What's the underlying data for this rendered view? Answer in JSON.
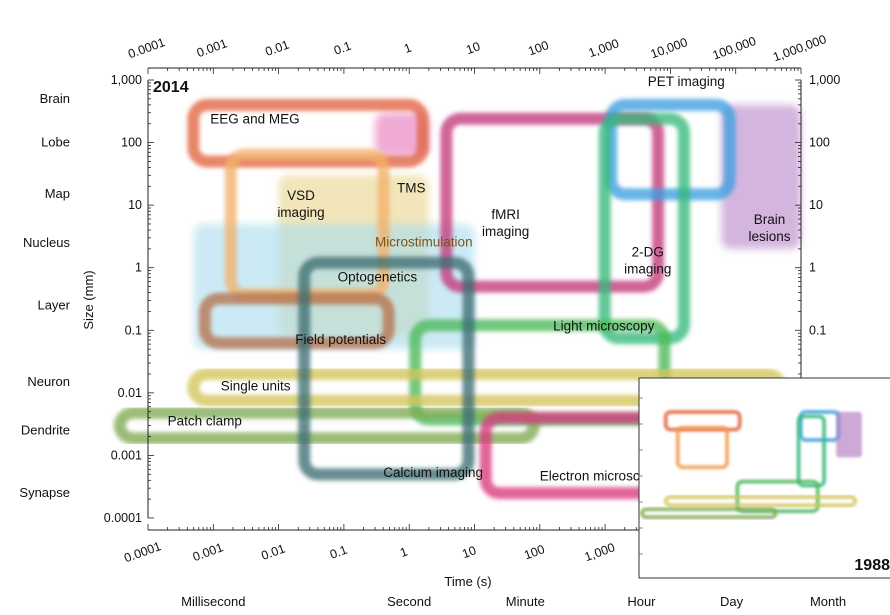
{
  "chart_data": {
    "type": "range-map",
    "year_label": "2014",
    "inset_year_label": "1988",
    "xlabel": "Time (s)",
    "ylabel": "Size (mm)",
    "x_scale": "log",
    "y_scale": "log",
    "xlim": [
      0.0001,
      1000000
    ],
    "ylim": [
      0.0001,
      1000
    ],
    "x_tick_labels": [
      "0.0001",
      "0.001",
      "0.01",
      "0.1",
      "1",
      "10",
      "100",
      "1,000",
      "10,000",
      "100,000",
      "1,000,000"
    ],
    "y_tick_labels": [
      "0.0001",
      "0.001",
      "0.01",
      "0.1",
      "1",
      "10",
      "100",
      "1,000"
    ],
    "y_tick_labels_right": [
      "0.1",
      "1",
      "10",
      "100",
      "1,000"
    ],
    "time_scale_labels": [
      {
        "label": "Millisecond",
        "value": 0.001
      },
      {
        "label": "Second",
        "value": 1
      },
      {
        "label": "Minute",
        "value": 60
      },
      {
        "label": "Hour",
        "value": 3600
      },
      {
        "label": "Day",
        "value": 86400
      },
      {
        "label": "Month",
        "value": 2592000
      }
    ],
    "size_scale_labels": [
      {
        "label": "Brain",
        "value": 500
      },
      {
        "label": "Lobe",
        "value": 100
      },
      {
        "label": "Map",
        "value": 15
      },
      {
        "label": "Nucleus",
        "value": 2.5
      },
      {
        "label": "Layer",
        "value": 0.25
      },
      {
        "label": "Neuron",
        "value": 0.015
      },
      {
        "label": "Dendrite",
        "value": 0.0025
      },
      {
        "label": "Synapse",
        "value": 0.00025
      }
    ],
    "methods": [
      {
        "name": "EEG and MEG",
        "x": [
          0.0004,
          2
        ],
        "y": [
          40,
          500
        ],
        "color": "#e0633f",
        "style": "outline",
        "label_at": [
          0.0009,
          200
        ]
      },
      {
        "name": "VSD imaging",
        "x": [
          0.0015,
          0.5
        ],
        "y": [
          0.3,
          80
        ],
        "color": "#f2b16a",
        "style": "outline",
        "label_at": [
          0.022,
          12
        ]
      },
      {
        "name": "TMS",
        "x": [
          0.3,
          2
        ],
        "y": [
          60,
          300
        ],
        "color": "#e673b8",
        "style": "fill",
        "label_at": [
          0.65,
          16
        ]
      },
      {
        "name": "fMRI imaging",
        "x": [
          3,
          8000
        ],
        "y": [
          0.4,
          300
        ],
        "color": "#c3387a",
        "style": "outline",
        "label_at": [
          30,
          6
        ]
      },
      {
        "name": "PET imaging",
        "x": [
          1000,
          100000
        ],
        "y": [
          12,
          500
        ],
        "color": "#3c9fe0",
        "style": "outline",
        "label_at": [
          4500,
          800
        ]
      },
      {
        "name": "2-DG imaging",
        "x": [
          800,
          20000
        ],
        "y": [
          0.06,
          300
        ],
        "color": "#35b87a",
        "style": "outline",
        "label_at": [
          4500,
          1.5
        ]
      },
      {
        "name": "Brain lesions",
        "x": [
          60000,
          1000000
        ],
        "y": [
          2,
          400
        ],
        "color": "#b884c6",
        "style": "fill",
        "label_at": [
          330000,
          5
        ]
      },
      {
        "name": "Microstimulation",
        "x": [
          0.01,
          2
        ],
        "y": [
          0.08,
          30
        ],
        "color": "#e8d48a",
        "style": "fill",
        "label_at": [
          0.3,
          2.2
        ]
      },
      {
        "name": "Optogenetics",
        "x": [
          0.0005,
          10
        ],
        "y": [
          0.05,
          5
        ],
        "color": "#a8dcef",
        "style": "fill",
        "label_at": [
          0.08,
          0.6
        ]
      },
      {
        "name": "Light microscopy",
        "x": [
          1,
          10000
        ],
        "y": [
          0.003,
          0.15
        ],
        "color": "#4cb85a",
        "style": "outline",
        "label_at": [
          160,
          0.1
        ]
      },
      {
        "name": "Field potentials",
        "x": [
          0.0006,
          0.6
        ],
        "y": [
          0.05,
          0.4
        ],
        "color": "#b5734e",
        "style": "outline",
        "label_at": [
          0.018,
          0.06
        ]
      },
      {
        "name": "Single units",
        "x": [
          0.0004,
          600000
        ],
        "y": [
          0.006,
          0.025
        ],
        "color": "#d4c45a",
        "style": "outline",
        "label_at": [
          0.0013,
          0.011
        ]
      },
      {
        "name": "Patch clamp",
        "x": [
          3e-05,
          100
        ],
        "y": [
          0.0015,
          0.006
        ],
        "color": "#7faa52",
        "style": "outline",
        "label_at": [
          0.0002,
          0.003
        ]
      },
      {
        "name": "Calcium imaging",
        "x": [
          0.02,
          10
        ],
        "y": [
          0.0004,
          1.5
        ],
        "color": "#3e6e72",
        "style": "outline",
        "label_at": [
          0.4,
          0.00045
        ]
      },
      {
        "name": "Electron microscopy",
        "x": [
          12,
          12000
        ],
        "y": [
          0.0002,
          0.005
        ],
        "color": "#d83a7e",
        "style": "outline",
        "label_at": [
          100,
          0.0004
        ]
      }
    ],
    "inset_1988": [
      {
        "name": "EEG and MEG",
        "x": [
          0.0004,
          2
        ],
        "y": [
          40,
          500
        ],
        "color": "#e0633f"
      },
      {
        "name": "VSD imaging",
        "x": [
          0.0015,
          0.5
        ],
        "y": [
          0.5,
          80
        ],
        "color": "#f2984a"
      },
      {
        "name": "PET imaging",
        "x": [
          1000,
          100000
        ],
        "y": [
          12,
          500
        ],
        "color": "#3c9fe0"
      },
      {
        "name": "2-DG imaging",
        "x": [
          800,
          20000
        ],
        "y": [
          0.06,
          300
        ],
        "color": "#35b87a"
      },
      {
        "name": "Brain lesions",
        "x": [
          60000,
          1000000
        ],
        "y": [
          2,
          400
        ],
        "color": "#b884c6"
      },
      {
        "name": "Light microscopy",
        "x": [
          1,
          10000
        ],
        "y": [
          0.003,
          0.15
        ],
        "color": "#4cb85a"
      },
      {
        "name": "Single units",
        "x": [
          0.0004,
          600000
        ],
        "y": [
          0.006,
          0.025
        ],
        "color": "#d4c45a"
      },
      {
        "name": "Patch clamp",
        "x": [
          3e-05,
          100
        ],
        "y": [
          0.0015,
          0.006
        ],
        "color": "#7faa52"
      }
    ]
  }
}
